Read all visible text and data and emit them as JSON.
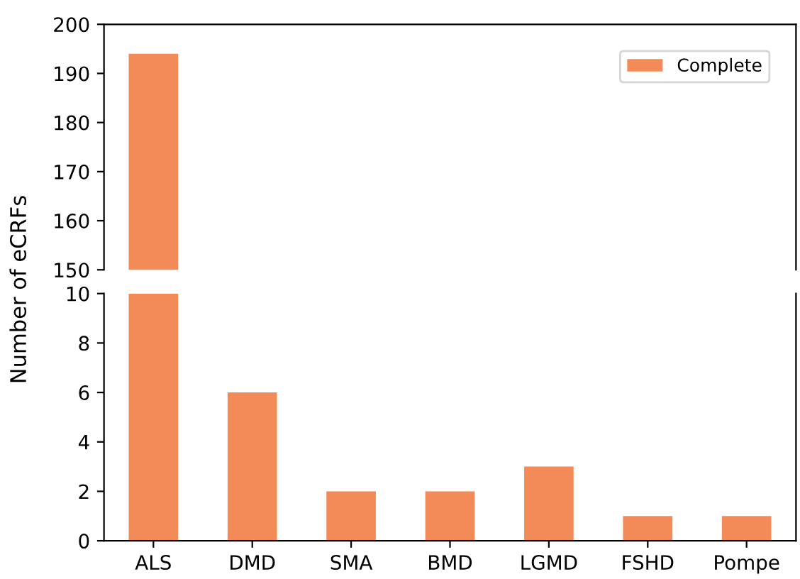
{
  "chart_data": [
    {
      "type": "bar",
      "ylabel": "Number of eCRFs",
      "categories": [
        null,
        null,
        null,
        null,
        null,
        null,
        null
      ],
      "ylim": [
        150,
        200
      ],
      "yticks": [
        150,
        160,
        170,
        180,
        190,
        200
      ],
      "tick_labels": "y",
      "legend": "top right",
      "series": [
        {
          "name": "Complete",
          "color": "#f28b58",
          "values": [
            194,
            null,
            null,
            null,
            null,
            null,
            null
          ]
        }
      ]
    },
    {
      "type": "bar",
      "categories": [
        "ALS",
        "DMD",
        "SMA",
        "BMD",
        "LGMD",
        "FSHD",
        "Pompe"
      ],
      "ylim": [
        0,
        10
      ],
      "yticks": [
        0,
        2,
        4,
        6,
        8,
        10
      ],
      "series": [
        {
          "color": "#f28b58",
          "values": [
            10,
            6,
            2,
            2,
            3,
            1,
            1
          ]
        }
      ]
    }
  ]
}
